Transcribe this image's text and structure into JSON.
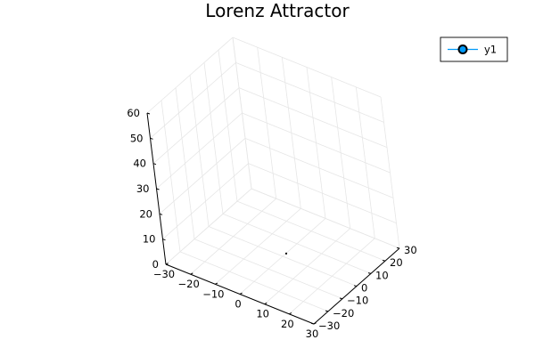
{
  "chart_data": {
    "type": "scatter",
    "dimensions": 3,
    "title": "Lorenz Attractor",
    "xlabel": "",
    "ylabel": "",
    "zlabel": "",
    "xlim": [
      -30,
      30
    ],
    "ylim": [
      -30,
      30
    ],
    "zlim": [
      0,
      60
    ],
    "xticks": [
      -30,
      -20,
      -10,
      0,
      10,
      20,
      30
    ],
    "xtick_labels": [
      "−30",
      "−20",
      "−10",
      "0",
      "10",
      "20",
      "30"
    ],
    "yticks": [
      -30,
      -20,
      -10,
      0,
      10,
      20,
      30
    ],
    "ytick_labels": [
      "−30",
      "−20",
      "−10",
      "0",
      "10",
      "20",
      "30"
    ],
    "zticks": [
      0,
      10,
      20,
      30,
      40,
      50,
      60
    ],
    "ztick_labels": [
      "0",
      "10",
      "20",
      "30",
      "40",
      "50",
      "60"
    ],
    "grid": true,
    "legend_position": "top-right",
    "series": [
      {
        "name": "y1",
        "color": "#009af9",
        "marker": "circle",
        "points": [
          {
            "x": 1,
            "y": 1,
            "z": 1
          }
        ]
      }
    ]
  }
}
